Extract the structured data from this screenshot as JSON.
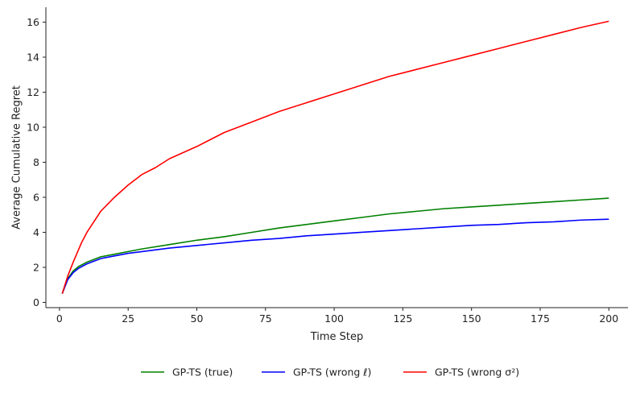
{
  "chart_data": {
    "type": "line",
    "xlabel": "Time Step",
    "ylabel": "Average Cumulative Regret",
    "xlim": [
      -4.95,
      206.95
    ],
    "ylim": [
      -0.3,
      16.85
    ],
    "x_ticks": [
      0,
      25,
      50,
      75,
      100,
      125,
      150,
      175,
      200
    ],
    "y_ticks": [
      0,
      2,
      4,
      6,
      8,
      10,
      12,
      14,
      16
    ],
    "grid": false,
    "legend_position": "bottom-center",
    "spines": "left-bottom",
    "series": [
      {
        "name": "GP-TS (true)",
        "color": "#008000",
        "x": [
          1,
          3,
          5,
          7,
          10,
          15,
          20,
          25,
          30,
          40,
          50,
          60,
          70,
          80,
          90,
          100,
          110,
          120,
          130,
          140,
          150,
          160,
          170,
          180,
          190,
          200
        ],
        "y": [
          0.5,
          1.35,
          1.8,
          2.05,
          2.3,
          2.6,
          2.75,
          2.9,
          3.05,
          3.3,
          3.55,
          3.75,
          4.0,
          4.25,
          4.45,
          4.65,
          4.85,
          5.05,
          5.2,
          5.35,
          5.45,
          5.55,
          5.65,
          5.75,
          5.85,
          5.95
        ]
      },
      {
        "name": "GP-TS (wrong ℓ)",
        "color": "#0000ff",
        "x": [
          1,
          3,
          5,
          7,
          10,
          15,
          20,
          25,
          30,
          40,
          50,
          60,
          70,
          80,
          90,
          100,
          110,
          120,
          130,
          140,
          150,
          160,
          170,
          180,
          190,
          200
        ],
        "y": [
          0.5,
          1.3,
          1.7,
          1.95,
          2.2,
          2.5,
          2.65,
          2.8,
          2.9,
          3.1,
          3.25,
          3.4,
          3.55,
          3.65,
          3.8,
          3.9,
          4.0,
          4.1,
          4.2,
          4.3,
          4.4,
          4.45,
          4.55,
          4.6,
          4.7,
          4.75
        ]
      },
      {
        "name": "GP-TS (wrong σ²)",
        "color": "#ff0000",
        "x": [
          1,
          3,
          5,
          8,
          10,
          15,
          20,
          25,
          30,
          35,
          40,
          50,
          60,
          70,
          80,
          90,
          100,
          110,
          120,
          130,
          140,
          150,
          160,
          170,
          180,
          190,
          200
        ],
        "y": [
          0.5,
          1.5,
          2.3,
          3.4,
          4.0,
          5.2,
          6.0,
          6.7,
          7.3,
          7.7,
          8.2,
          8.9,
          9.7,
          10.3,
          10.9,
          11.4,
          11.9,
          12.4,
          12.9,
          13.3,
          13.7,
          14.1,
          14.5,
          14.9,
          15.3,
          15.7,
          16.05
        ]
      }
    ]
  }
}
